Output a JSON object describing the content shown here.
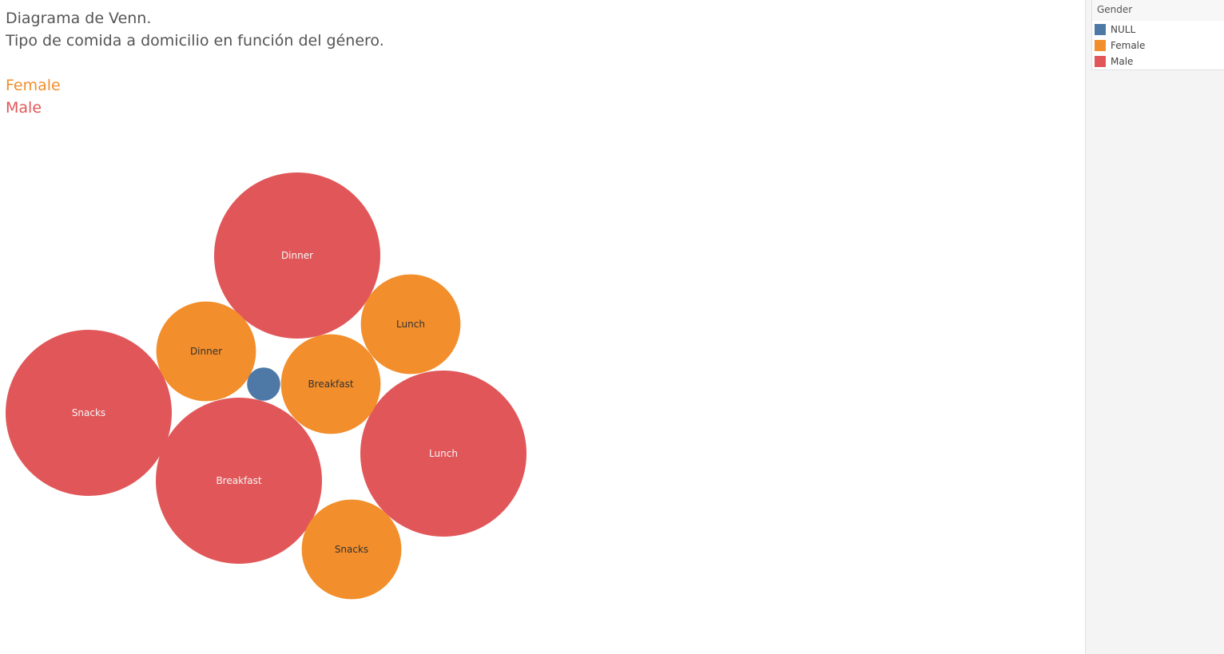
{
  "title": {
    "line1": "Diagrama de Venn.",
    "line2": "Tipo de comida a domicilio en función del género."
  },
  "gender_labels": {
    "female": "Female",
    "male": "Male"
  },
  "legend": {
    "title": "Gender",
    "items": [
      {
        "label": "NULL",
        "color": "#4e79a7"
      },
      {
        "label": "Female",
        "color": "#f28e2b"
      },
      {
        "label": "Male",
        "color": "#e15759"
      }
    ]
  },
  "colors": {
    "NULL": "#4e79a7",
    "Female": "#f28e2b",
    "Male": "#e15759",
    "title_text": "#555555"
  },
  "chart_data": {
    "type": "bubble",
    "size_unit": "relative",
    "bubbles": [
      {
        "label": "Dinner",
        "gender": "Male",
        "size": 100
      },
      {
        "label": "Snacks",
        "gender": "Male",
        "size": 100
      },
      {
        "label": "Breakfast",
        "gender": "Male",
        "size": 100
      },
      {
        "label": "Lunch",
        "gender": "Male",
        "size": 100
      },
      {
        "label": "Lunch",
        "gender": "Female",
        "size": 36
      },
      {
        "label": "Dinner",
        "gender": "Female",
        "size": 36
      },
      {
        "label": "Breakfast",
        "gender": "Female",
        "size": 36
      },
      {
        "label": "Snacks",
        "gender": "Female",
        "size": 36
      },
      {
        "label": "",
        "gender": "NULL",
        "size": 4
      }
    ]
  }
}
